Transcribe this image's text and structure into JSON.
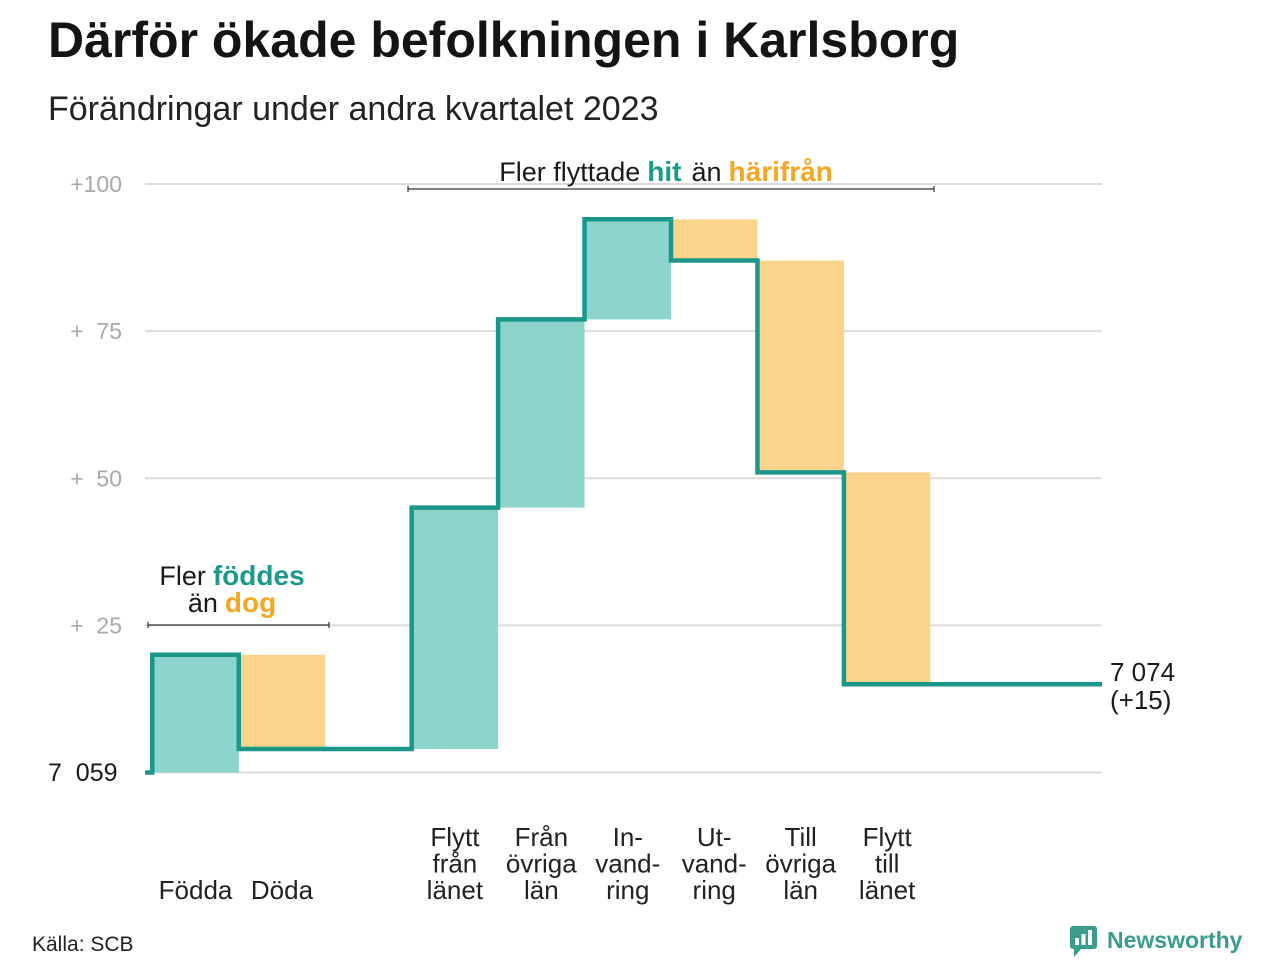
{
  "chart_data": {
    "type": "bar",
    "waterfall": true,
    "title": "Därför ökade befolkningen i Karlsborg",
    "subtitle": "Förändringar under andra kvartalet 2023",
    "start": {
      "value": 7059,
      "label": "7  059"
    },
    "end": {
      "value": 7074,
      "change": 15,
      "label": "7 074",
      "change_label": "(+15)"
    },
    "categories": [
      {
        "lines": [
          "Födda"
        ],
        "change": 20
      },
      {
        "lines": [
          "Döda"
        ],
        "change": -16
      },
      {
        "lines": [
          "Flytt",
          "från",
          "länet"
        ],
        "change": 41
      },
      {
        "lines": [
          "Från",
          "övriga",
          "län"
        ],
        "change": 32
      },
      {
        "lines": [
          "In-",
          "vand-",
          "ring"
        ],
        "change": 17
      },
      {
        "lines": [
          "Ut-",
          "vand-",
          "ring"
        ],
        "change": -7
      },
      {
        "lines": [
          "Till",
          "övriga",
          "län"
        ],
        "change": -36
      },
      {
        "lines": [
          "Flytt",
          "till",
          "länet"
        ],
        "change": -36
      }
    ],
    "y_ticks": [
      {
        "value": 25,
        "label": "+  25"
      },
      {
        "value": 50,
        "label": "+  50"
      },
      {
        "value": 75,
        "label": "+  75"
      },
      {
        "value": 100,
        "label": "+100"
      }
    ],
    "ylim": [
      0,
      100
    ],
    "grid": true,
    "annotations": {
      "migration": {
        "prefix": "Fler flyttade",
        "increase": "hit",
        "joiner": "än",
        "decrease": "härifrån"
      },
      "natural": {
        "prefix": "Fler",
        "increase": "föddes",
        "joiner": "än",
        "decrease": "dog"
      }
    }
  },
  "source": "Källa: SCB",
  "logo": {
    "text": "Newsworthy",
    "icon": "newsworthy-logo-icon"
  },
  "colors": {
    "increase_fill": "#8dd5cc",
    "decrease_fill": "#fad48c",
    "line": "#1b978a",
    "increase_text": "#1a9a8b",
    "decrease_text": "#f5a623",
    "grid": "#dcdcdc",
    "logo": "#3a9c8c"
  }
}
